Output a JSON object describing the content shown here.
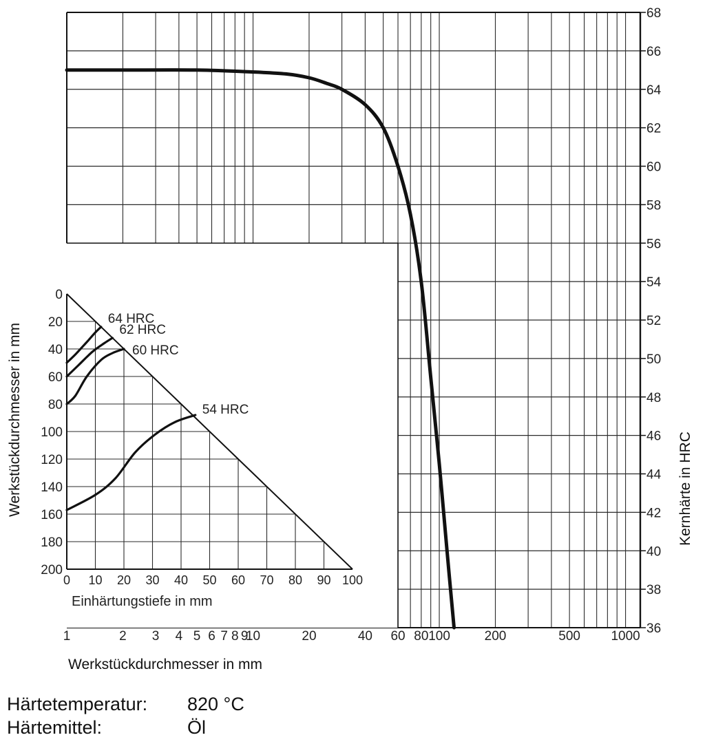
{
  "chart_data": [
    {
      "type": "line",
      "title": "",
      "xlabel": "Werkstückdurchmesser in mm",
      "ylabel": "Kernhärte in HRC",
      "x_scale": "log",
      "xlim": [
        1,
        1200
      ],
      "ylim": [
        36,
        68
      ],
      "grid": true,
      "x_tick_labels": [
        "1",
        "2",
        "3",
        "4",
        "5",
        "6",
        "7",
        "8",
        "9",
        "10",
        "20",
        "40",
        "60",
        "80",
        "100",
        "200",
        "500",
        "1000"
      ],
      "y_tick_labels": [
        "36",
        "38",
        "40",
        "42",
        "44",
        "46",
        "48",
        "50",
        "52",
        "54",
        "56",
        "58",
        "60",
        "62",
        "64",
        "66",
        "68"
      ],
      "series": [
        {
          "x": [
            1,
            2,
            5,
            10,
            15,
            20,
            25,
            30,
            40,
            50,
            60,
            70,
            80,
            90,
            100,
            110,
            120
          ],
          "y": [
            65,
            65,
            65,
            64.9,
            64.8,
            64.6,
            64.3,
            64.0,
            63.2,
            62.0,
            60.0,
            57.5,
            54.0,
            49.0,
            44.5,
            40.0,
            36.0
          ]
        }
      ]
    },
    {
      "type": "line",
      "title": "",
      "xlabel": "Einhärtungstiefe in mm",
      "ylabel": "Werkstückdurchmesser in mm",
      "xlim": [
        0,
        100
      ],
      "ylim": [
        0,
        200
      ],
      "y_inverted": true,
      "grid": true,
      "x_tick_labels": [
        "0",
        "10",
        "20",
        "30",
        "40",
        "50",
        "60",
        "70",
        "80",
        "90",
        "100"
      ],
      "y_tick_labels": [
        "0",
        "20",
        "40",
        "60",
        "80",
        "100",
        "120",
        "140",
        "160",
        "180",
        "200"
      ],
      "limit_line": {
        "x": [
          0,
          100
        ],
        "y": [
          0,
          200
        ]
      },
      "series": [
        {
          "name": "64 HRC",
          "x": [
            0,
            3,
            7,
            10,
            12
          ],
          "y": [
            50,
            44,
            35,
            28,
            24
          ]
        },
        {
          "name": "62 HRC",
          "x": [
            0,
            4,
            9,
            13,
            16
          ],
          "y": [
            60,
            52,
            42,
            36,
            32
          ]
        },
        {
          "name": "60 HRC",
          "x": [
            0,
            3,
            7,
            12,
            16,
            20
          ],
          "y": [
            80,
            74,
            60,
            48,
            43,
            40
          ]
        },
        {
          "name": "54 HRC",
          "x": [
            0,
            10,
            17,
            24,
            31,
            38,
            45
          ],
          "y": [
            157,
            146,
            134,
            115,
            102,
            93,
            88
          ]
        }
      ]
    }
  ],
  "footer": {
    "temp_label": "Härtetemperatur:",
    "temp_value": "820 °C",
    "medium_label": "Härtemittel:",
    "medium_value": "Öl"
  }
}
